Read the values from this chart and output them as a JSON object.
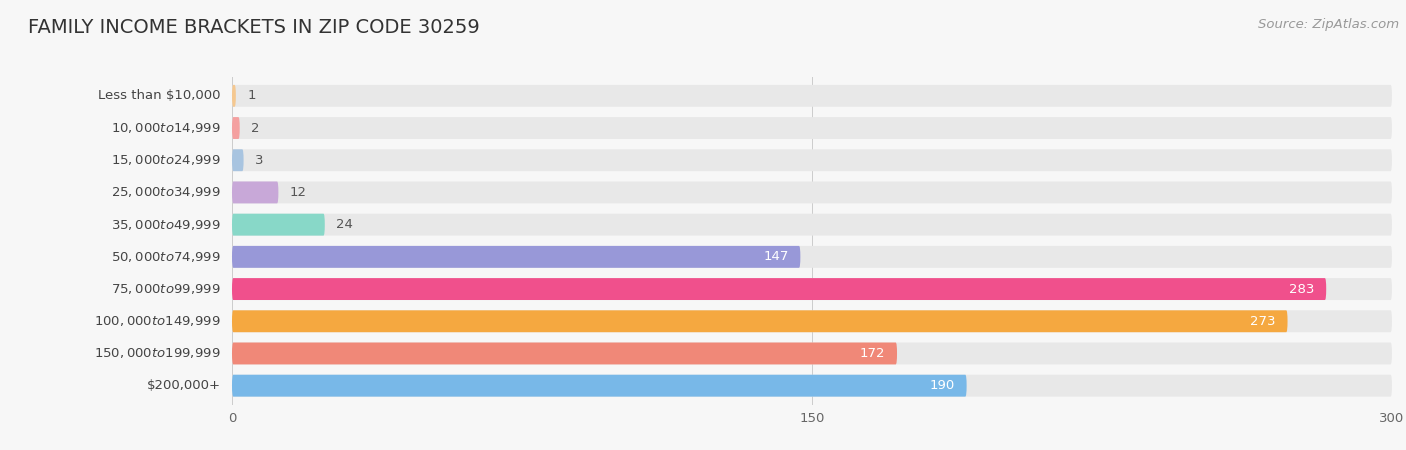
{
  "title": "FAMILY INCOME BRACKETS IN ZIP CODE 30259",
  "source": "Source: ZipAtlas.com",
  "categories": [
    "Less than $10,000",
    "$10,000 to $14,999",
    "$15,000 to $24,999",
    "$25,000 to $34,999",
    "$35,000 to $49,999",
    "$50,000 to $74,999",
    "$75,000 to $99,999",
    "$100,000 to $149,999",
    "$150,000 to $199,999",
    "$200,000+"
  ],
  "values": [
    1,
    2,
    3,
    12,
    24,
    147,
    283,
    273,
    172,
    190
  ],
  "bar_colors": [
    "#F5C890",
    "#F4A0A0",
    "#A8C4E0",
    "#C8A8D8",
    "#88D8C8",
    "#9898D8",
    "#F0508C",
    "#F5A840",
    "#F08878",
    "#78B8E8"
  ],
  "xlim": [
    0,
    300
  ],
  "xticks": [
    0,
    150,
    300
  ],
  "background_color": "#f7f7f7",
  "bar_background_color": "#e8e8e8",
  "title_fontsize": 14,
  "label_fontsize": 9.5,
  "value_fontsize": 9.5,
  "source_fontsize": 9.5
}
